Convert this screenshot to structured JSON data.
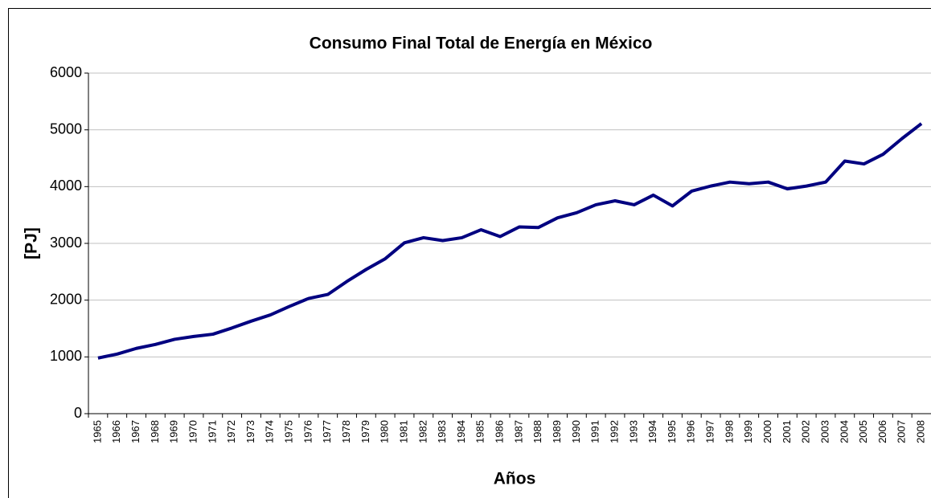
{
  "chart_data": {
    "type": "line",
    "title": "Consumo Final Total de Energía en México",
    "x_label": "Años",
    "y_label": "[PJ]",
    "categories": [
      "1965",
      "1966",
      "1967",
      "1968",
      "1969",
      "1970",
      "1971",
      "1972",
      "1973",
      "1974",
      "1975",
      "1976",
      "1977",
      "1978",
      "1979",
      "1980",
      "1981",
      "1982",
      "1983",
      "1984",
      "1985",
      "1986",
      "1987",
      "1988",
      "1989",
      "1990",
      "1991",
      "1992",
      "1993",
      "1994",
      "1995",
      "1996",
      "1997",
      "1998",
      "1999",
      "2000",
      "2001",
      "2002",
      "2003",
      "2004",
      "2005",
      "2006",
      "2007",
      "2008"
    ],
    "series": [
      {
        "color": "#000080",
        "values": [
          980,
          1050,
          1150,
          1220,
          1310,
          1360,
          1400,
          1510,
          1630,
          1740,
          1890,
          2030,
          2100,
          2330,
          2540,
          2730,
          3010,
          3100,
          3050,
          3100,
          3240,
          3120,
          3290,
          3280,
          3450,
          3540,
          3680,
          3750,
          3680,
          3850,
          3660,
          3920,
          4010,
          4080,
          4050,
          4080,
          3960,
          4010,
          4080,
          4450,
          4400,
          4570,
          4850,
          5110
        ]
      }
    ],
    "ylim": [
      0,
      6000
    ],
    "yticks": [
      0,
      1000,
      2000,
      3000,
      4000,
      5000,
      6000
    ],
    "grid": true
  }
}
